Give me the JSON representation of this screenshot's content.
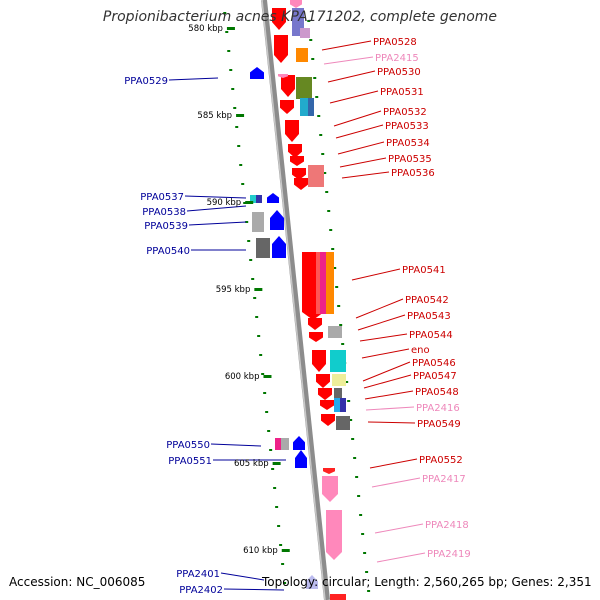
{
  "title": "Propionibacterium acnes KPA171202, complete genome",
  "footer": {
    "accession": "Accession: NC_006085",
    "summary": "Topology: circular; Length: 2,560,265 bp; Genes: 2,351"
  },
  "colors": {
    "forward_gene": "#ff0000",
    "reverse_gene": "#0000ff",
    "pseudo_gene": "#ff88bb",
    "backbone": "#8c8c8c",
    "tick_dot": "#007700",
    "forward_label": "#cc0000",
    "reverse_label": "#000099",
    "pseudo_label": "#ee88bb"
  },
  "ticks": [
    "580 kbp",
    "585 kbp",
    "590 kbp",
    "595 kbp",
    "600 kbp",
    "605 kbp",
    "610 kbp"
  ],
  "labels": [
    {
      "text": "PPA0528",
      "strand": "forward"
    },
    {
      "text": "PPA2415",
      "strand": "pseudo"
    },
    {
      "text": "PPA0530",
      "strand": "forward"
    },
    {
      "text": "PPA0531",
      "strand": "forward"
    },
    {
      "text": "PPA0532",
      "strand": "forward"
    },
    {
      "text": "PPA0533",
      "strand": "forward"
    },
    {
      "text": "PPA0534",
      "strand": "forward"
    },
    {
      "text": "PPA0535",
      "strand": "forward"
    },
    {
      "text": "PPA0536",
      "strand": "forward"
    },
    {
      "text": "PPA0541",
      "strand": "forward"
    },
    {
      "text": "PPA0542",
      "strand": "forward"
    },
    {
      "text": "PPA0543",
      "strand": "forward"
    },
    {
      "text": "PPA0544",
      "strand": "forward"
    },
    {
      "text": "eno",
      "strand": "forward"
    },
    {
      "text": "PPA0546",
      "strand": "forward"
    },
    {
      "text": "PPA0547",
      "strand": "forward"
    },
    {
      "text": "PPA0548",
      "strand": "forward"
    },
    {
      "text": "PPA2416",
      "strand": "pseudo"
    },
    {
      "text": "PPA0549",
      "strand": "forward"
    },
    {
      "text": "PPA0552",
      "strand": "forward"
    },
    {
      "text": "PPA2417",
      "strand": "pseudo"
    },
    {
      "text": "PPA2418",
      "strand": "pseudo"
    },
    {
      "text": "PPA2419",
      "strand": "pseudo"
    },
    {
      "text": "PPA0529",
      "strand": "reverse"
    },
    {
      "text": "PPA0537",
      "strand": "reverse"
    },
    {
      "text": "PPA0538",
      "strand": "reverse"
    },
    {
      "text": "PPA0539",
      "strand": "reverse"
    },
    {
      "text": "PPA0540",
      "strand": "reverse"
    },
    {
      "text": "PPA0550",
      "strand": "reverse"
    },
    {
      "text": "PPA0551",
      "strand": "reverse"
    },
    {
      "text": "PPA2401",
      "strand": "reverse"
    },
    {
      "text": "PPA2402",
      "strand": "reverse"
    }
  ]
}
